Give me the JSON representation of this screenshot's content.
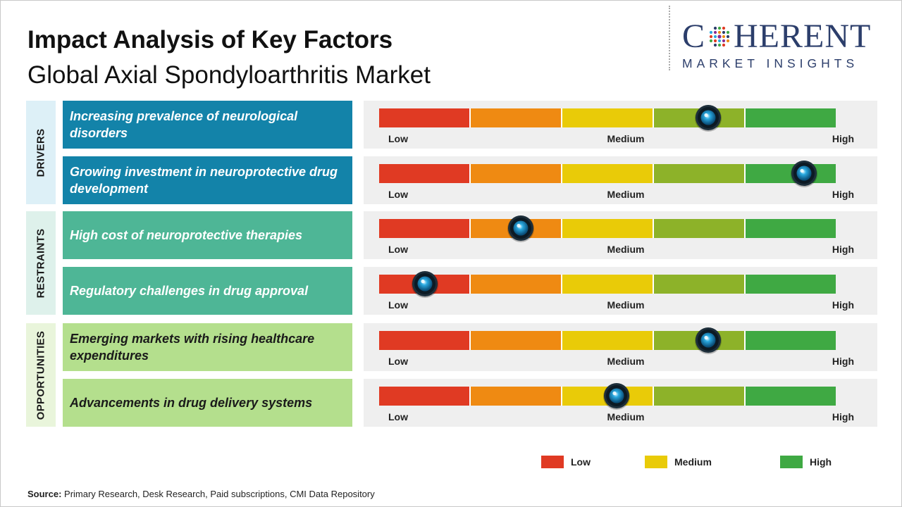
{
  "header": {
    "title": "Impact Analysis of Key Factors",
    "subtitle": "Global Axial Spondyloarthritis Market"
  },
  "logo": {
    "word_before_o": "C",
    "word_after_o": "HERENT",
    "tagline": "MARKET INSIGHTS",
    "text_color": "#2c3e6b"
  },
  "colors": {
    "scale": [
      "#e03a23",
      "#ef8a12",
      "#e9cb08",
      "#8db229",
      "#3fa943"
    ],
    "drivers_fill": "#1383a9",
    "drivers_label_bg": "#ddf0f7",
    "restraints_fill": "#4eb696",
    "restraints_label_bg": "#def1eb",
    "opportunities_fill": "#b4df8d",
    "opportunities_label_bg": "#e9f5db",
    "marker": "#2aa9e0"
  },
  "gauge_labels": {
    "low": "Low",
    "medium": "Medium",
    "high": "High"
  },
  "chart_data": {
    "type": "table",
    "scale_levels": [
      "Low",
      "Medium",
      "High"
    ],
    "scale_range": [
      0,
      1
    ],
    "groups": [
      {
        "name": "DRIVERS",
        "factors": [
          {
            "label": "Increasing prevalence of neurological disorders",
            "impact": 0.72
          },
          {
            "label": "Growing investment in neuroprotective drug development",
            "impact": 0.93
          }
        ]
      },
      {
        "name": "RESTRAINTS",
        "factors": [
          {
            "label": "High cost of neuroprotective therapies",
            "impact": 0.31
          },
          {
            "label": "Regulatory challenges in drug approval",
            "impact": 0.1
          }
        ]
      },
      {
        "name": "OPPORTUNITIES",
        "factors": [
          {
            "label": "Emerging markets with rising healthcare expenditures",
            "impact": 0.72
          },
          {
            "label": "Advancements in drug delivery systems",
            "impact": 0.52
          }
        ]
      }
    ],
    "legend": [
      {
        "label": "Low",
        "color": "#e03a23"
      },
      {
        "label": "Medium",
        "color": "#e9cb08"
      },
      {
        "label": "High",
        "color": "#3fa943"
      }
    ]
  },
  "source": {
    "label": "Source:",
    "text": "Primary Research, Desk Research, Paid subscriptions, CMI Data Repository"
  }
}
